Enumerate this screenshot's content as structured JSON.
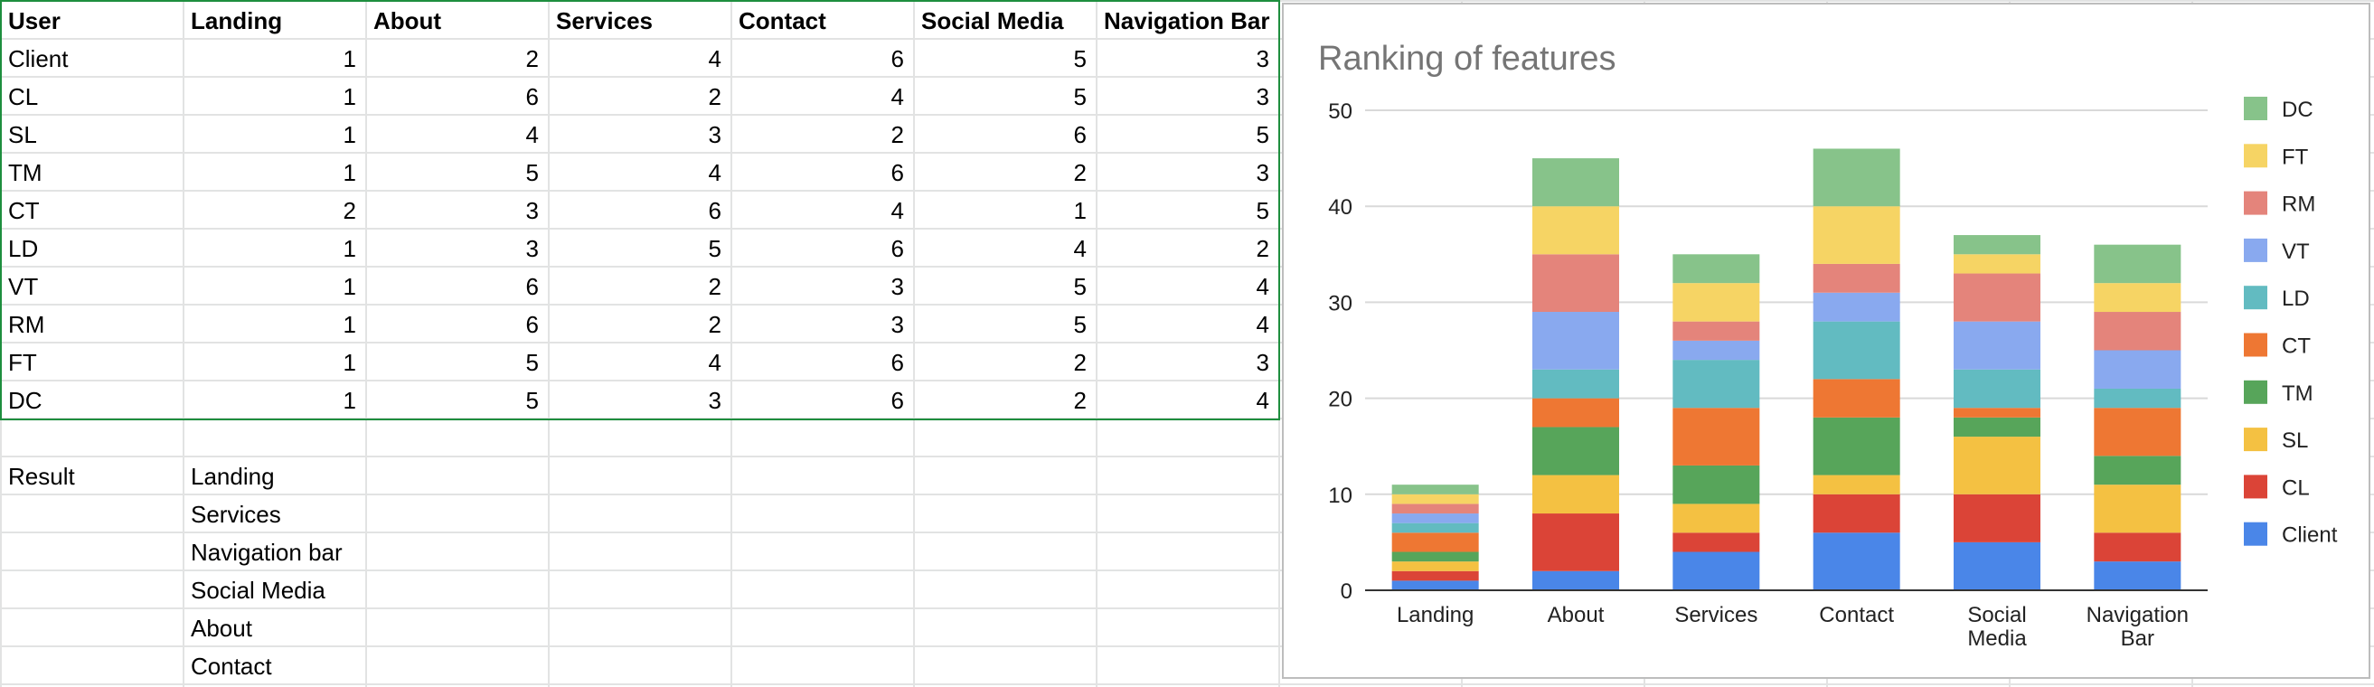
{
  "table": {
    "headers": [
      "User",
      "Landing",
      "About",
      "Services",
      "Contact",
      "Social Media",
      "Navigation Bar"
    ],
    "rows": [
      [
        "Client",
        "1",
        "2",
        "4",
        "6",
        "5",
        "3"
      ],
      [
        "CL",
        "1",
        "6",
        "2",
        "4",
        "5",
        "3"
      ],
      [
        "SL",
        "1",
        "4",
        "3",
        "2",
        "6",
        "5"
      ],
      [
        "TM",
        "1",
        "5",
        "4",
        "6",
        "2",
        "3"
      ],
      [
        "CT",
        "2",
        "3",
        "6",
        "4",
        "1",
        "5"
      ],
      [
        "LD",
        "1",
        "3",
        "5",
        "6",
        "4",
        "2"
      ],
      [
        "VT",
        "1",
        "6",
        "2",
        "3",
        "5",
        "4"
      ],
      [
        "RM",
        "1",
        "6",
        "2",
        "3",
        "5",
        "4"
      ],
      [
        "FT",
        "1",
        "5",
        "4",
        "6",
        "2",
        "3"
      ],
      [
        "DC",
        "1",
        "5",
        "3",
        "6",
        "2",
        "4"
      ]
    ]
  },
  "result": {
    "label": "Result",
    "items": [
      "Landing",
      "Services",
      "Navigation bar",
      "Social Media",
      "About",
      "Contact"
    ]
  },
  "icons": {
    "filter": "filter-icon"
  },
  "colors": {
    "range_border": "#1e8e3e",
    "filter": "#1e8e3e"
  },
  "chart_data": {
    "type": "bar",
    "stacked": true,
    "title": "Ranking of features",
    "xlabel": "",
    "ylabel": "",
    "ylim": [
      0,
      50
    ],
    "yticks": [
      0,
      10,
      20,
      30,
      40,
      50
    ],
    "grid": true,
    "legend_position": "right",
    "categories": [
      "Landing",
      "About",
      "Services",
      "Contact",
      "Social Media",
      "Navigation Bar"
    ],
    "series": [
      {
        "name": "Client",
        "color": "#4a86e8",
        "values": [
          1,
          2,
          4,
          6,
          5,
          3
        ]
      },
      {
        "name": "CL",
        "color": "#db4437",
        "values": [
          1,
          6,
          2,
          4,
          5,
          3
        ]
      },
      {
        "name": "SL",
        "color": "#f4c142",
        "values": [
          1,
          4,
          3,
          2,
          6,
          5
        ]
      },
      {
        "name": "TM",
        "color": "#57a55a",
        "values": [
          1,
          5,
          4,
          6,
          2,
          3
        ]
      },
      {
        "name": "CT",
        "color": "#ee7733",
        "values": [
          2,
          3,
          6,
          4,
          1,
          5
        ]
      },
      {
        "name": "LD",
        "color": "#62bbc1",
        "values": [
          1,
          3,
          5,
          6,
          4,
          2
        ]
      },
      {
        "name": "VT",
        "color": "#89a9ef",
        "values": [
          1,
          6,
          2,
          3,
          5,
          4
        ]
      },
      {
        "name": "RM",
        "color": "#e4847b",
        "values": [
          1,
          6,
          2,
          3,
          5,
          4
        ]
      },
      {
        "name": "FT",
        "color": "#f6d464",
        "values": [
          1,
          5,
          4,
          6,
          2,
          3
        ]
      },
      {
        "name": "DC",
        "color": "#87c38a",
        "values": [
          1,
          5,
          3,
          6,
          2,
          4
        ]
      }
    ]
  }
}
